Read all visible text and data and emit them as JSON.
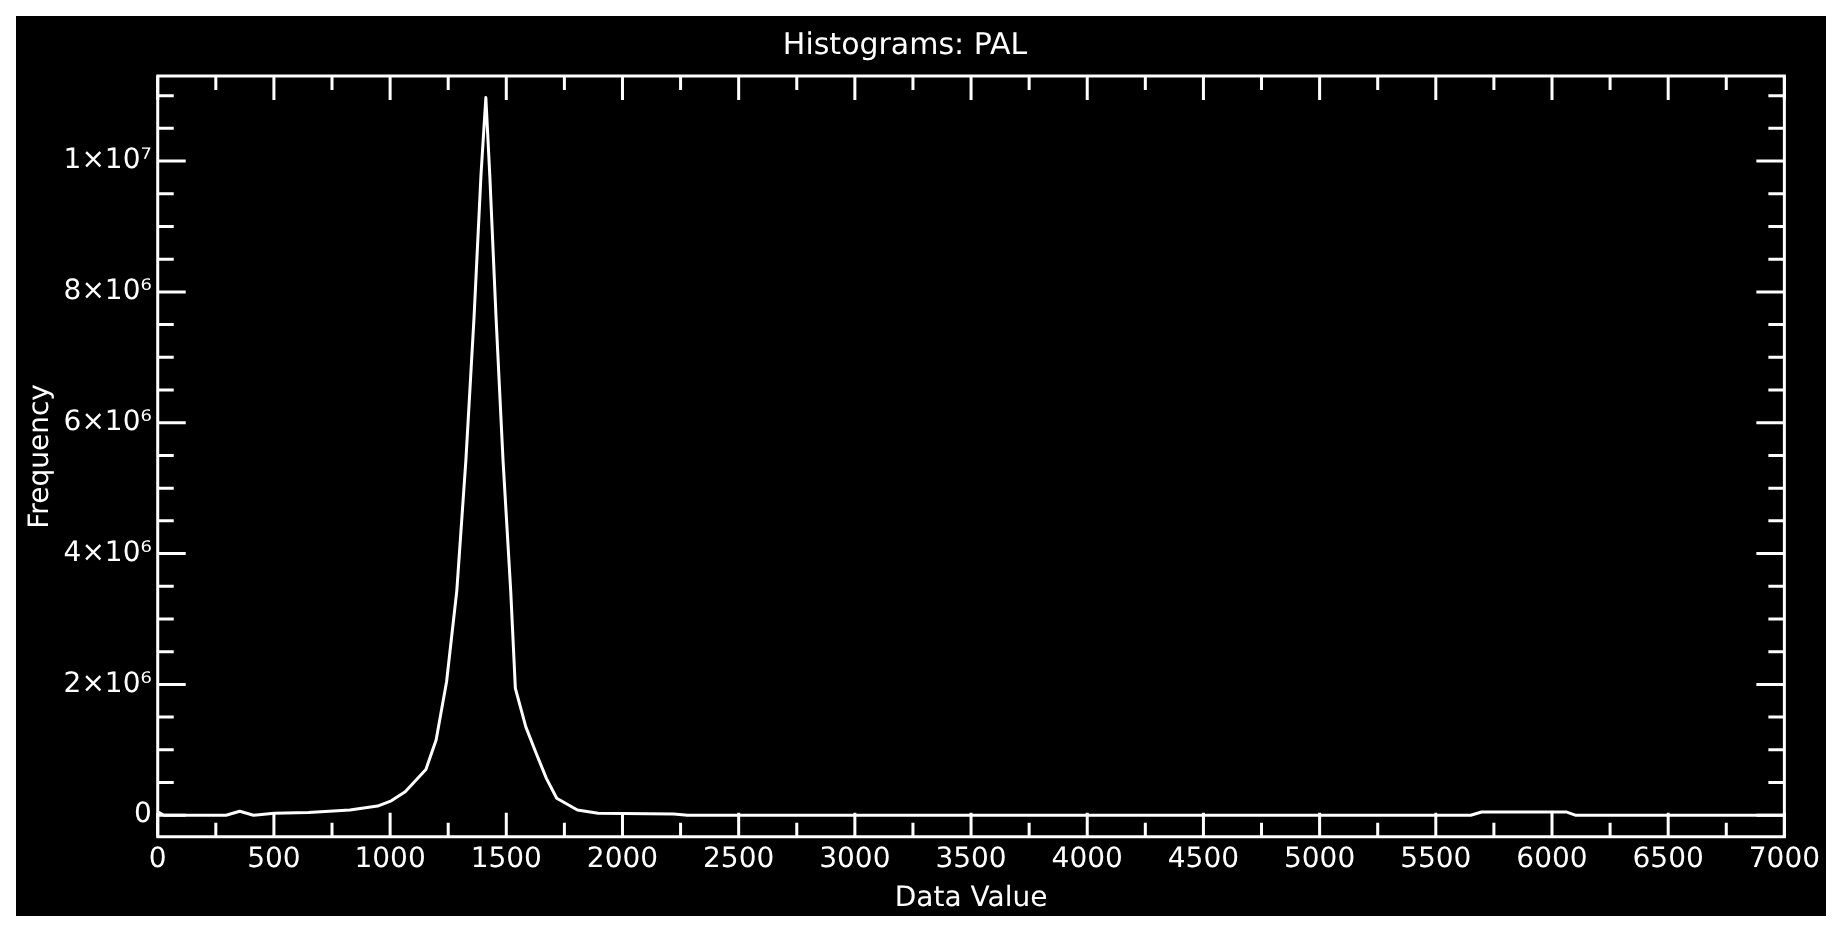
{
  "chart_data": {
    "type": "line",
    "title": "Histograms: PAL",
    "xlabel": "Data Value",
    "ylabel": "Frequency",
    "x": [
      0,
      27,
      294,
      353,
      412,
      501,
      649,
      827,
      946,
      1005,
      1065,
      1154,
      1198,
      1243,
      1287,
      1326,
      1361,
      1391,
      1412,
      1429,
      1456,
      1486,
      1519,
      1539,
      1584,
      1628,
      1673,
      1717,
      1806,
      1895,
      2221,
      2280,
      5650,
      5697,
      6061,
      6100,
      7000
    ],
    "series": [
      {
        "color": "#ffffff",
        "values": [
          50000,
          0,
          0,
          60000,
          0,
          30000,
          40000,
          80000,
          140000,
          220000,
          360000,
          700000,
          1150000,
          2040000,
          3430000,
          5420000,
          7600000,
          9780000,
          10970000,
          9780000,
          7600000,
          5420000,
          3430000,
          1940000,
          1350000,
          950000,
          560000,
          260000,
          80000,
          30000,
          20000,
          0,
          0,
          50000,
          50000,
          0,
          0
        ]
      }
    ],
    "xlim": [
      0,
      7000
    ],
    "xticks": [
      0,
      {
        "value": 250,
        "label": null
      },
      500,
      {
        "value": 750,
        "label": null
      },
      1000,
      {
        "value": 1250,
        "label": null
      },
      1500,
      {
        "value": 1750,
        "label": null
      },
      2000,
      {
        "value": 2250,
        "label": null
      },
      2500,
      {
        "value": 2750,
        "label": null
      },
      3000,
      {
        "value": 3250,
        "label": null
      },
      3500,
      {
        "value": 3750,
        "label": null
      },
      4000,
      {
        "value": 4250,
        "label": null
      },
      4500,
      {
        "value": 4750,
        "label": null
      },
      5000,
      {
        "value": 5250,
        "label": null
      },
      5500,
      {
        "value": 5750,
        "label": null
      },
      6000,
      {
        "value": 6250,
        "label": null
      },
      6500,
      {
        "value": 6750,
        "label": null
      },
      7000
    ],
    "ylim": [
      -330000,
      11300000
    ],
    "yticks": [
      0,
      {
        "value": 500000,
        "label": null
      },
      {
        "value": 1000000,
        "label": null
      },
      {
        "value": 1500000,
        "label": null
      },
      {
        "value": 2000000,
        "label": "2×10⁶"
      },
      {
        "value": 2500000,
        "label": null
      },
      {
        "value": 3000000,
        "label": null
      },
      {
        "value": 3500000,
        "label": null
      },
      {
        "value": 4000000,
        "label": "4×10⁶"
      },
      {
        "value": 4500000,
        "label": null
      },
      {
        "value": 5000000,
        "label": null
      },
      {
        "value": 5500000,
        "label": null
      },
      {
        "value": 6000000,
        "label": "6×10⁶"
      },
      {
        "value": 6500000,
        "label": null
      },
      {
        "value": 7000000,
        "label": null
      },
      {
        "value": 7500000,
        "label": null
      },
      {
        "value": 8000000,
        "label": "8×10⁶"
      },
      {
        "value": 8500000,
        "label": null
      },
      {
        "value": 9000000,
        "label": null
      },
      {
        "value": 9500000,
        "label": null
      },
      {
        "value": 10000000,
        "label": "1×10⁷"
      },
      {
        "value": 10500000,
        "label": null
      },
      {
        "value": 11000000,
        "label": null
      }
    ],
    "grid": false,
    "legend": false,
    "marker": "none",
    "line_style": "solid"
  }
}
